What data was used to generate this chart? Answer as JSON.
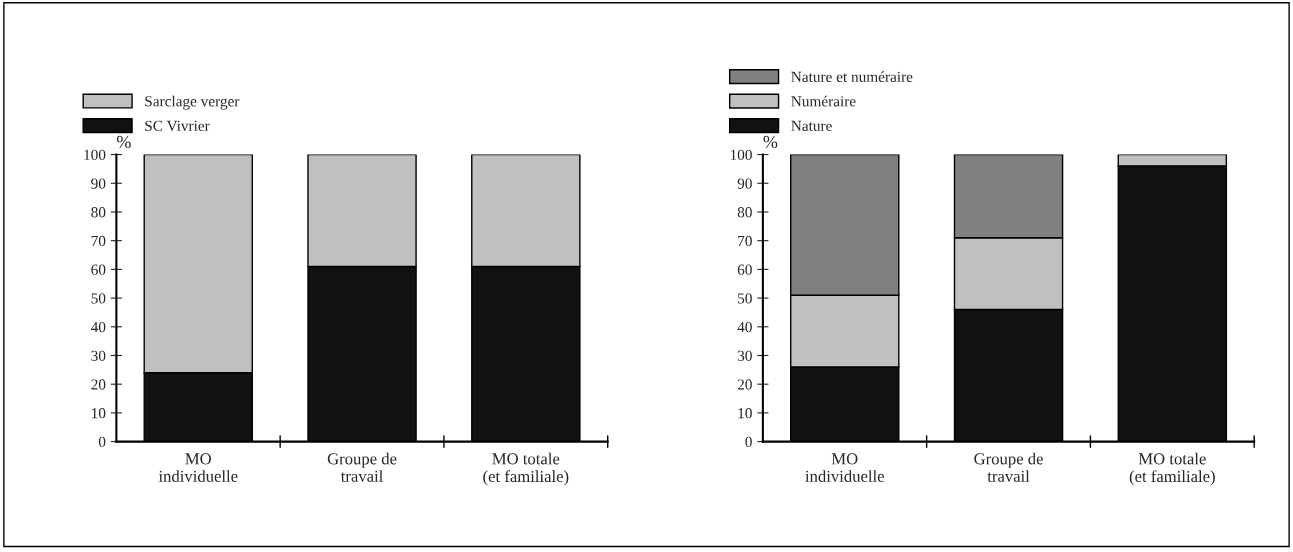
{
  "chart_data": [
    {
      "type": "bar",
      "stacked": true,
      "ylabel": "%",
      "categories": [
        "MO\nindividuelle",
        "Groupe de\ntravail",
        "MO totale\n(et familiale)"
      ],
      "series": [
        {
          "name": "SC Vivrier",
          "color": "#111111",
          "values": [
            24,
            61,
            61
          ]
        },
        {
          "name": "Sarclage verger",
          "color": "#c0c0c0",
          "values": [
            76,
            39,
            39
          ]
        }
      ],
      "ylim": [
        0,
        100
      ],
      "yticks": [
        0,
        10,
        20,
        30,
        40,
        50,
        60,
        70,
        80,
        90,
        100
      ],
      "grid": false,
      "legend": "top left"
    },
    {
      "type": "bar",
      "stacked": true,
      "ylabel": "%",
      "categories": [
        "MO\nindividuelle",
        "Groupe de\ntravail",
        "MO totale\n(et familiale)"
      ],
      "series": [
        {
          "name": "Nature",
          "color": "#111111",
          "values": [
            26,
            46,
            96
          ]
        },
        {
          "name": "Numéraire",
          "color": "#c0c0c0",
          "values": [
            25,
            25,
            4
          ]
        },
        {
          "name": "Nature et numéraire",
          "color": "#808080",
          "values": [
            49,
            29,
            0
          ]
        }
      ],
      "ylim": [
        0,
        100
      ],
      "yticks": [
        0,
        10,
        20,
        30,
        40,
        50,
        60,
        70,
        80,
        90,
        100
      ],
      "grid": false,
      "legend": "top left"
    }
  ]
}
